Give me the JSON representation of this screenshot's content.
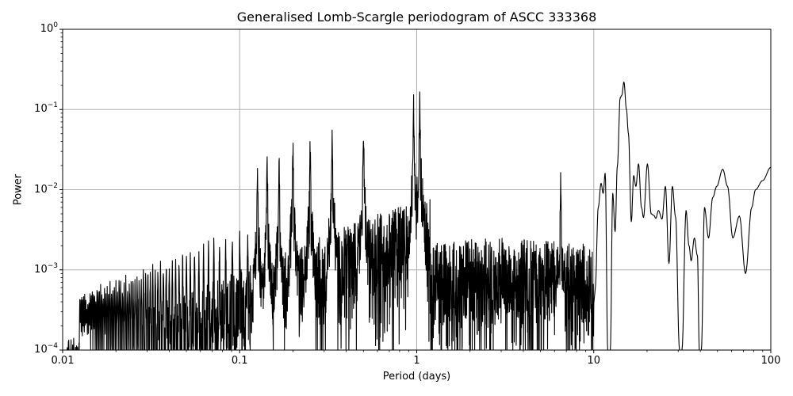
{
  "chart_data": {
    "type": "line",
    "title": "Generalised Lomb-Scargle periodogram of ASCC 333368",
    "xlabel": "Period (days)",
    "ylabel": "Power",
    "xscale": "log",
    "yscale": "log",
    "xlim": [
      0.01,
      100
    ],
    "ylim": [
      0.0001,
      1
    ],
    "grid": true,
    "line_color": "#000000",
    "grid_color": "#b0b0b0",
    "xticks": [
      {
        "value": 0.01,
        "label": "0.01"
      },
      {
        "value": 0.1,
        "label": "0.1"
      },
      {
        "value": 1,
        "label": "1"
      },
      {
        "value": 10,
        "label": "10"
      },
      {
        "value": 100,
        "label": "100"
      }
    ],
    "yticks": [
      {
        "value": 1,
        "base": "10",
        "exp": "0"
      },
      {
        "value": 0.1,
        "base": "10",
        "exp": "−1"
      },
      {
        "value": 0.01,
        "base": "10",
        "exp": "−2"
      },
      {
        "value": 0.001,
        "base": "10",
        "exp": "−3"
      },
      {
        "value": 0.0001,
        "base": "10",
        "exp": "−4"
      }
    ],
    "notable_peaks": [
      {
        "period": 0.126,
        "power": 0.03
      },
      {
        "period": 0.143,
        "power": 0.035
      },
      {
        "period": 0.167,
        "power": 0.03
      },
      {
        "period": 0.2,
        "power": 0.055
      },
      {
        "period": 0.25,
        "power": 0.055
      },
      {
        "period": 0.333,
        "power": 0.08
      },
      {
        "period": 0.5,
        "power": 0.09
      },
      {
        "period": 0.96,
        "power": 0.16
      },
      {
        "period": 1.04,
        "power": 0.19
      },
      {
        "period": 6.5,
        "power": 0.02
      },
      {
        "period": 11.5,
        "power": 0.016
      },
      {
        "period": 14.6,
        "power": 0.22
      },
      {
        "period": 17.5,
        "power": 0.02
      },
      {
        "period": 20,
        "power": 0.02
      },
      {
        "period": 23.5,
        "power": 0.011
      },
      {
        "period": 27,
        "power": 0.011
      },
      {
        "period": 34,
        "power": 0.0055
      },
      {
        "period": 43,
        "power": 0.006
      },
      {
        "period": 55,
        "power": 0.018
      },
      {
        "period": 67,
        "power": 0.0047
      },
      {
        "period": 100,
        "power": 0.019
      }
    ],
    "smooth_tail": [
      [
        10.2,
        0.0006
      ],
      [
        10.6,
        0.006
      ],
      [
        11.0,
        0.012
      ],
      [
        11.3,
        0.009
      ],
      [
        11.6,
        0.016
      ],
      [
        12.0,
        0.0001
      ],
      [
        12.4,
        0.0001
      ],
      [
        12.8,
        0.009
      ],
      [
        13.2,
        0.003
      ],
      [
        13.6,
        0.02
      ],
      [
        14.1,
        0.14
      ],
      [
        14.4,
        0.15
      ],
      [
        14.8,
        0.22
      ],
      [
        15.3,
        0.1
      ],
      [
        15.7,
        0.05
      ],
      [
        16.3,
        0.004
      ],
      [
        16.8,
        0.015
      ],
      [
        17.3,
        0.011
      ],
      [
        17.9,
        0.021
      ],
      [
        18.6,
        0.006
      ],
      [
        19.1,
        0.0045
      ],
      [
        20.1,
        0.021
      ],
      [
        21.1,
        0.005
      ],
      [
        21.8,
        0.0048
      ],
      [
        22.4,
        0.0044
      ],
      [
        23.2,
        0.0055
      ],
      [
        24.3,
        0.0043
      ],
      [
        25.4,
        0.011
      ],
      [
        26.6,
        0.0012
      ],
      [
        27.8,
        0.011
      ],
      [
        29.0,
        0.0045
      ],
      [
        30.5,
        0.0001
      ],
      [
        31.5,
        0.0001
      ],
      [
        33.2,
        0.0055
      ],
      [
        34.5,
        0.002
      ],
      [
        35.5,
        0.0013
      ],
      [
        37.0,
        0.0025
      ],
      [
        38.5,
        0.0015
      ],
      [
        39.5,
        0.0001
      ],
      [
        40.5,
        0.0001
      ],
      [
        42.2,
        0.006
      ],
      [
        44.5,
        0.0025
      ],
      [
        47.0,
        0.008
      ],
      [
        49.5,
        0.011
      ],
      [
        53.5,
        0.018
      ],
      [
        57.0,
        0.011
      ],
      [
        61.0,
        0.0025
      ],
      [
        66.5,
        0.0047
      ],
      [
        72.0,
        0.0009
      ],
      [
        78.0,
        0.006
      ],
      [
        82.0,
        0.01
      ],
      [
        90.0,
        0.013
      ],
      [
        100.0,
        0.019
      ]
    ]
  }
}
